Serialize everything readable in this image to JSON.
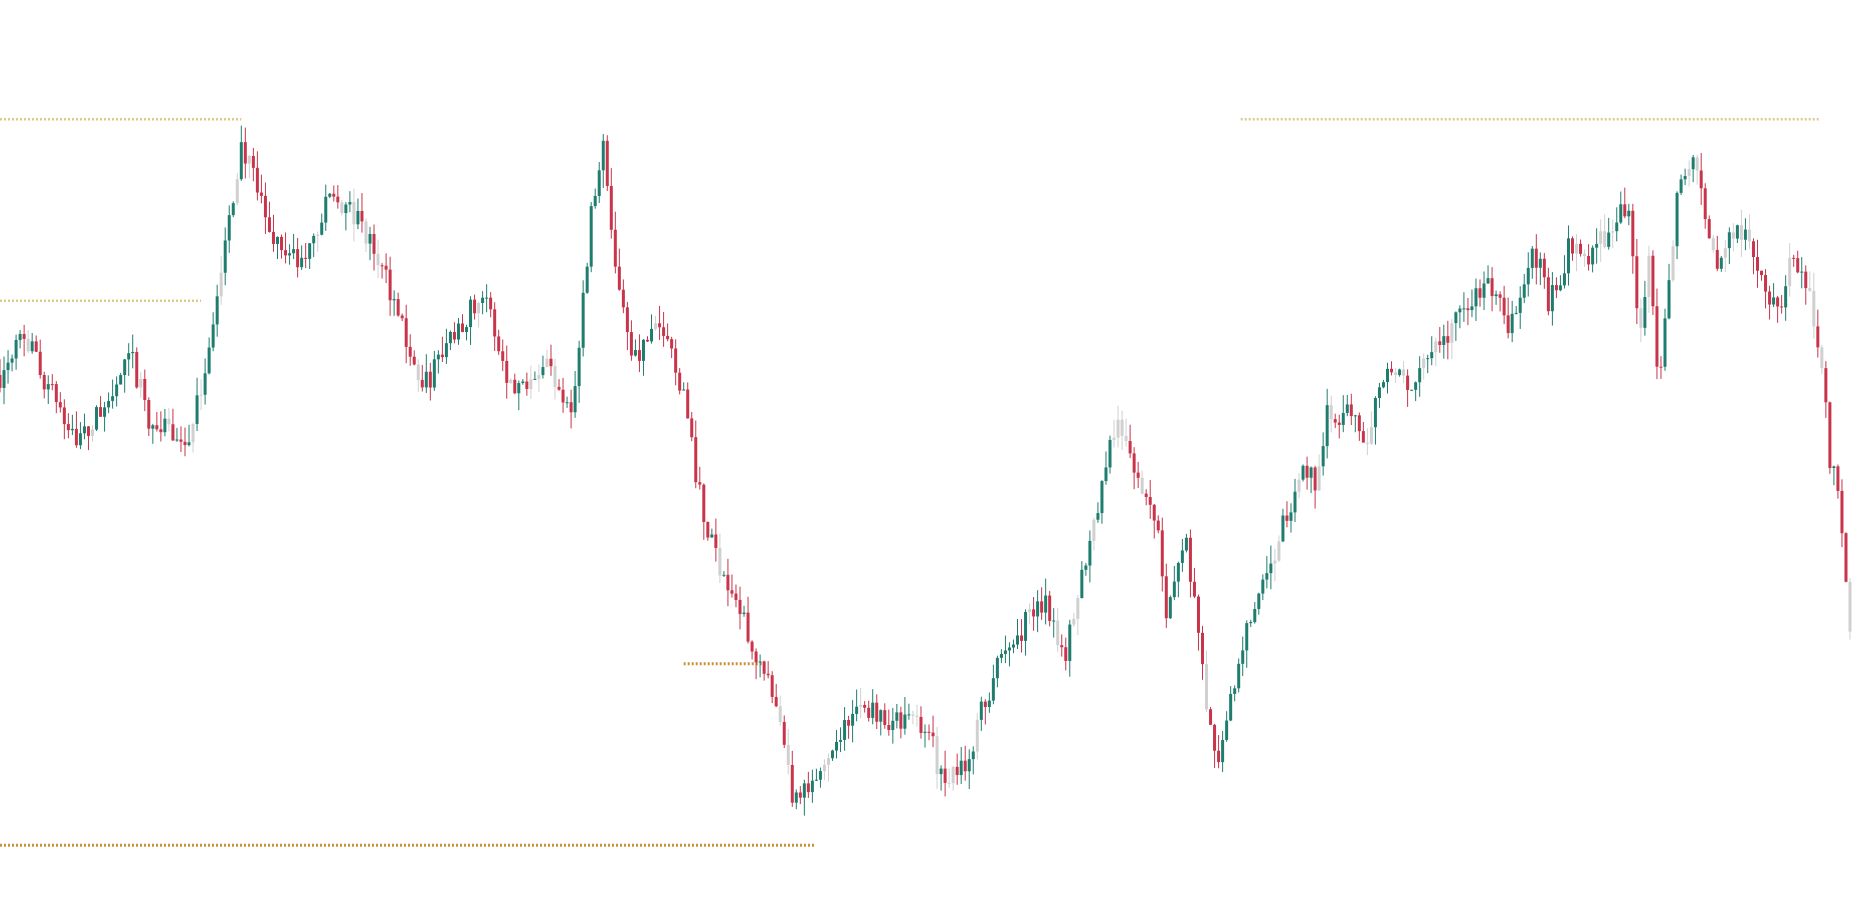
{
  "chart_data": {
    "type": "candlestick",
    "title": "",
    "xlabel": "",
    "ylabel": "",
    "x_axis": "none",
    "y_axis": "none",
    "grid": false,
    "legend": "none",
    "ylim": [
      0,
      100
    ],
    "colors": {
      "up": "#1e7d6e",
      "down": "#c8344a",
      "wick_ghost": "#d0d0d0",
      "level_light": "#d8cd8a",
      "level_dark": "#c8933a"
    },
    "anchors": [
      [
        0,
        60
      ],
      [
        10,
        66
      ],
      [
        25,
        58
      ],
      [
        40,
        52
      ],
      [
        55,
        57
      ],
      [
        65,
        62
      ],
      [
        75,
        54
      ],
      [
        95,
        52
      ],
      [
        110,
        72
      ],
      [
        120,
        88
      ],
      [
        135,
        77
      ],
      [
        150,
        73
      ],
      [
        165,
        82
      ],
      [
        180,
        78
      ],
      [
        195,
        70
      ],
      [
        210,
        58
      ],
      [
        225,
        65
      ],
      [
        240,
        70
      ],
      [
        255,
        58
      ],
      [
        270,
        62
      ],
      [
        285,
        56
      ],
      [
        295,
        82
      ],
      [
        300,
        88
      ],
      [
        305,
        75
      ],
      [
        315,
        62
      ],
      [
        330,
        66
      ],
      [
        340,
        58
      ],
      [
        350,
        42
      ],
      [
        360,
        36
      ],
      [
        375,
        27
      ],
      [
        385,
        20
      ],
      [
        395,
        8
      ],
      [
        405,
        10
      ],
      [
        415,
        16
      ],
      [
        430,
        20
      ],
      [
        445,
        18
      ],
      [
        460,
        18
      ],
      [
        470,
        10
      ],
      [
        480,
        13
      ],
      [
        495,
        24
      ],
      [
        510,
        30
      ],
      [
        520,
        33
      ],
      [
        530,
        26
      ],
      [
        540,
        38
      ],
      [
        550,
        49
      ],
      [
        556,
        55
      ],
      [
        560,
        52
      ],
      [
        565,
        47
      ],
      [
        575,
        43
      ],
      [
        580,
        32
      ],
      [
        590,
        40
      ],
      [
        600,
        20
      ],
      [
        605,
        12
      ],
      [
        610,
        18
      ],
      [
        620,
        29
      ],
      [
        630,
        35
      ],
      [
        640,
        43
      ],
      [
        650,
        49
      ],
      [
        655,
        47
      ],
      [
        660,
        56
      ],
      [
        670,
        55
      ],
      [
        680,
        53
      ],
      [
        690,
        62
      ],
      [
        700,
        58
      ],
      [
        715,
        63
      ],
      [
        725,
        67
      ],
      [
        735,
        70
      ],
      [
        740,
        71
      ],
      [
        745,
        69
      ],
      [
        750,
        65
      ],
      [
        760,
        73
      ],
      [
        765,
        75
      ],
      [
        770,
        68
      ],
      [
        780,
        75
      ],
      [
        785,
        77
      ],
      [
        790,
        73
      ],
      [
        800,
        78
      ],
      [
        810,
        80
      ],
      [
        815,
        65
      ],
      [
        820,
        73
      ],
      [
        825,
        60
      ],
      [
        835,
        84
      ],
      [
        840,
        86
      ],
      [
        845,
        83
      ],
      [
        855,
        72
      ],
      [
        860,
        78
      ],
      [
        870,
        76
      ],
      [
        880,
        70
      ],
      [
        885,
        66
      ],
      [
        890,
        74
      ],
      [
        900,
        70
      ],
      [
        905,
        63
      ],
      [
        910,
        50
      ],
      [
        915,
        45
      ],
      [
        920,
        30
      ]
    ],
    "levels": [
      {
        "y": 91,
        "x_range": [
          0,
          120
        ],
        "style": "light"
      },
      {
        "y": 69,
        "x_range": [
          0,
          100
        ],
        "style": "light"
      },
      {
        "y": 25,
        "x_range": [
          340,
          380
        ],
        "style": "dark"
      },
      {
        "y": 3,
        "x_range": [
          0,
          405
        ],
        "style": "dark"
      },
      {
        "y": 91,
        "x_range": [
          617,
          905
        ],
        "style": "light"
      }
    ]
  }
}
